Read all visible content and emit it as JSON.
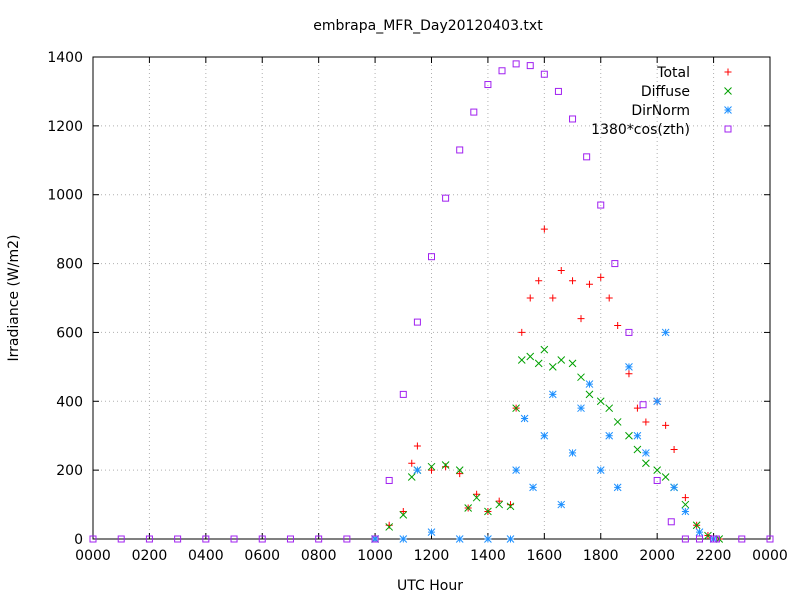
{
  "chart_data": {
    "type": "scatter",
    "title": "embrapa_MFR_Day20120403.txt",
    "xlabel": "UTC Hour",
    "ylabel": "Irradiance (W/m2)",
    "xlim": [
      0,
      24
    ],
    "ylim": [
      0,
      1400
    ],
    "grid": true,
    "legend_position": "top-right",
    "x_tick_labels": [
      "0000",
      "0200",
      "0400",
      "0600",
      "0800",
      "1000",
      "1200",
      "1400",
      "1600",
      "1800",
      "2000",
      "2200",
      "0000"
    ],
    "y_ticks": [
      0,
      200,
      400,
      600,
      800,
      1000,
      1200,
      1400
    ],
    "series": [
      {
        "name": "Total",
        "color": "#ff0000",
        "marker": "plus",
        "x": [
          10.0,
          10.5,
          11.0,
          11.3,
          11.5,
          12.0,
          12.5,
          13.0,
          13.3,
          13.6,
          14.0,
          14.4,
          14.8,
          15.0,
          15.2,
          15.5,
          15.8,
          16.0,
          16.3,
          16.6,
          17.0,
          17.3,
          17.6,
          18.0,
          18.3,
          18.6,
          19.0,
          19.3,
          19.6,
          20.0,
          20.3,
          20.6,
          21.0,
          21.4,
          21.8,
          22.2
        ],
        "y": [
          0,
          40,
          80,
          220,
          270,
          200,
          210,
          190,
          90,
          130,
          80,
          110,
          100,
          380,
          600,
          700,
          750,
          900,
          700,
          780,
          750,
          640,
          740,
          760,
          700,
          620,
          480,
          380,
          340,
          400,
          330,
          260,
          120,
          40,
          10,
          0
        ]
      },
      {
        "name": "Diffuse",
        "color": "#00a000",
        "marker": "cross",
        "x": [
          10.0,
          10.5,
          11.0,
          11.3,
          11.5,
          12.0,
          12.5,
          13.0,
          13.3,
          13.6,
          14.0,
          14.4,
          14.8,
          15.0,
          15.2,
          15.5,
          15.8,
          16.0,
          16.3,
          16.6,
          17.0,
          17.3,
          17.6,
          18.0,
          18.3,
          18.6,
          19.0,
          19.3,
          19.6,
          20.0,
          20.3,
          20.6,
          21.0,
          21.4,
          21.8,
          22.2
        ],
        "y": [
          0,
          35,
          70,
          180,
          200,
          210,
          215,
          200,
          90,
          120,
          80,
          100,
          95,
          380,
          520,
          530,
          510,
          550,
          500,
          520,
          510,
          470,
          420,
          400,
          380,
          340,
          300,
          260,
          220,
          200,
          180,
          150,
          100,
          40,
          10,
          0
        ]
      },
      {
        "name": "DirNorm",
        "color": "#1e90ff",
        "marker": "star",
        "x": [
          10.0,
          11.0,
          11.5,
          12.0,
          13.0,
          14.0,
          14.8,
          15.0,
          15.3,
          15.6,
          16.0,
          16.3,
          16.6,
          17.0,
          17.3,
          17.6,
          18.0,
          18.3,
          18.6,
          19.0,
          19.3,
          19.6,
          20.0,
          20.3,
          20.6,
          21.0,
          21.5,
          22.0
        ],
        "y": [
          0,
          0,
          200,
          20,
          0,
          0,
          0,
          200,
          350,
          150,
          300,
          420,
          100,
          250,
          380,
          450,
          200,
          300,
          150,
          500,
          300,
          250,
          400,
          600,
          150,
          80,
          20,
          0
        ]
      },
      {
        "name": "1380*cos(zth)",
        "color": "#a020f0",
        "marker": "square",
        "x": [
          0,
          1,
          2,
          3,
          4,
          5,
          6,
          7,
          8,
          9,
          10.0,
          10.5,
          11.0,
          11.5,
          12.0,
          12.5,
          13.0,
          13.5,
          14.0,
          14.5,
          15.0,
          15.5,
          16.0,
          16.5,
          17.0,
          17.5,
          18.0,
          18.5,
          19.0,
          19.5,
          20.0,
          20.5,
          21.0,
          21.5,
          22.0,
          22.1,
          23,
          24
        ],
        "y": [
          0,
          0,
          0,
          0,
          0,
          0,
          0,
          0,
          0,
          0,
          0,
          170,
          420,
          630,
          820,
          990,
          1130,
          1240,
          1320,
          1360,
          1380,
          1375,
          1350,
          1300,
          1220,
          1110,
          970,
          800,
          600,
          390,
          170,
          50,
          0,
          0,
          0,
          0,
          0,
          0
        ]
      }
    ]
  }
}
